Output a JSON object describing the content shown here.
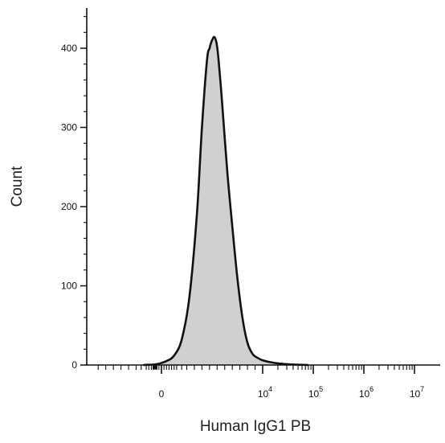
{
  "chart_data": {
    "type": "area",
    "title": "",
    "xlabel": "Human IgG1 PB",
    "ylabel": "Count",
    "x_scale": "biexponential (logicle)",
    "ylim": [
      0,
      450
    ],
    "y_ticks": [
      0,
      100,
      200,
      300,
      400
    ],
    "x_ticks": [
      {
        "base": "0",
        "exp": ""
      },
      {
        "base": "10",
        "exp": "4"
      },
      {
        "base": "10",
        "exp": "5"
      },
      {
        "base": "10",
        "exp": "6"
      },
      {
        "base": "10",
        "exp": "7"
      }
    ],
    "grid": false,
    "legend": "none",
    "fill_color": "#d0d0d0",
    "line_color": "#111111",
    "series": [
      {
        "x_logicle": [
          -0.36,
          -0.1,
          0.1,
          0.25,
          0.4,
          0.55,
          0.7,
          0.8,
          0.9,
          0.95,
          1.0,
          1.05,
          1.1,
          1.15,
          1.2,
          1.3,
          1.4,
          1.5,
          1.6,
          1.7,
          1.8,
          1.9,
          2.0,
          2.2,
          2.5,
          2.9
        ],
        "values": [
          0,
          1,
          5,
          12,
          32,
          85,
          190,
          300,
          385,
          400,
          410,
          414,
          402,
          370,
          330,
          245,
          175,
          110,
          60,
          28,
          14,
          9,
          6,
          3,
          1,
          0
        ]
      }
    ]
  }
}
